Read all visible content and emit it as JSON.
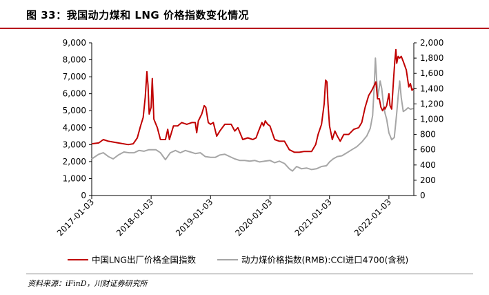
{
  "figure": {
    "title": "图 33：我国动力煤和 LNG 价格指数变化情况",
    "source": "资料来源：iFinD，川财证券研究所"
  },
  "colors": {
    "accent": "#b7121b",
    "lng": "#c00000",
    "coal": "#a6a6a6"
  },
  "chart_data": {
    "type": "line",
    "x_type": "date",
    "x_ticks": [
      "2017-01-03",
      "2018-01-03",
      "2019-01-03",
      "2020-01-03",
      "2021-01-03",
      "2022-01-03"
    ],
    "y_left": {
      "lim": [
        0,
        9000
      ],
      "ticks": [
        0,
        1000,
        2000,
        3000,
        4000,
        5000,
        6000,
        7000,
        8000,
        9000
      ],
      "tick_labels": [
        "0",
        "1,000",
        "2,000",
        "3,000",
        "4,000",
        "5,000",
        "6,000",
        "7,000",
        "8,000",
        "9,000"
      ]
    },
    "y_right": {
      "lim": [
        0,
        2000
      ],
      "ticks": [
        0,
        200,
        400,
        600,
        800,
        1000,
        1200,
        1400,
        1600,
        1800,
        2000
      ],
      "tick_labels": [
        "0",
        "200",
        "400",
        "600",
        "800",
        "1,000",
        "1,200",
        "1,400",
        "1,600",
        "1,800",
        "2,000"
      ]
    },
    "grid": false,
    "legend_position": "bottom",
    "series": [
      {
        "name": "中国LNG出厂价格全国指数",
        "axis": "left",
        "points": [
          [
            "2017-01-03",
            3050
          ],
          [
            "2017-02-15",
            3100
          ],
          [
            "2017-03-15",
            3300
          ],
          [
            "2017-04-15",
            3200
          ],
          [
            "2017-06-15",
            3100
          ],
          [
            "2017-08-15",
            3000
          ],
          [
            "2017-09-15",
            3050
          ],
          [
            "2017-10-10",
            3400
          ],
          [
            "2017-10-30",
            4100
          ],
          [
            "2017-11-15",
            4600
          ],
          [
            "2017-11-28",
            5800
          ],
          [
            "2017-12-08",
            7300
          ],
          [
            "2017-12-15",
            6500
          ],
          [
            "2017-12-22",
            4800
          ],
          [
            "2018-01-03",
            5200
          ],
          [
            "2018-01-10",
            6900
          ],
          [
            "2018-01-20",
            4500
          ],
          [
            "2018-02-10",
            4000
          ],
          [
            "2018-03-01",
            3300
          ],
          [
            "2018-04-01",
            3300
          ],
          [
            "2018-04-15",
            3900
          ],
          [
            "2018-04-25",
            3300
          ],
          [
            "2018-05-20",
            4100
          ],
          [
            "2018-06-15",
            4100
          ],
          [
            "2018-07-10",
            4300
          ],
          [
            "2018-08-10",
            4200
          ],
          [
            "2018-09-10",
            4300
          ],
          [
            "2018-10-01",
            4300
          ],
          [
            "2018-10-10",
            3700
          ],
          [
            "2018-10-20",
            4400
          ],
          [
            "2018-11-10",
            4800
          ],
          [
            "2018-11-25",
            5300
          ],
          [
            "2018-12-05",
            5200
          ],
          [
            "2018-12-20",
            4300
          ],
          [
            "2019-01-03",
            4200
          ],
          [
            "2019-01-20",
            4300
          ],
          [
            "2019-02-10",
            3500
          ],
          [
            "2019-03-01",
            3800
          ],
          [
            "2019-04-01",
            4200
          ],
          [
            "2019-05-10",
            4200
          ],
          [
            "2019-06-01",
            3800
          ],
          [
            "2019-06-20",
            4000
          ],
          [
            "2019-07-20",
            3300
          ],
          [
            "2019-08-20",
            3400
          ],
          [
            "2019-09-20",
            3300
          ],
          [
            "2019-10-10",
            3400
          ],
          [
            "2019-10-25",
            3800
          ],
          [
            "2019-11-15",
            4300
          ],
          [
            "2019-11-25",
            4100
          ],
          [
            "2019-12-05",
            4400
          ],
          [
            "2019-12-20",
            4200
          ],
          [
            "2020-01-03",
            4100
          ],
          [
            "2020-02-01",
            3300
          ],
          [
            "2020-03-01",
            3200
          ],
          [
            "2020-04-01",
            3200
          ],
          [
            "2020-05-01",
            2700
          ],
          [
            "2020-06-01",
            2550
          ],
          [
            "2020-07-01",
            2550
          ],
          [
            "2020-08-01",
            2600
          ],
          [
            "2020-09-15",
            2600
          ],
          [
            "2020-10-10",
            3000
          ],
          [
            "2020-10-25",
            3600
          ],
          [
            "2020-11-15",
            4200
          ],
          [
            "2020-12-01",
            5400
          ],
          [
            "2020-12-10",
            6800
          ],
          [
            "2020-12-18",
            6700
          ],
          [
            "2020-12-25",
            5400
          ],
          [
            "2021-01-03",
            4100
          ],
          [
            "2021-01-20",
            3300
          ],
          [
            "2021-02-05",
            3800
          ],
          [
            "2021-02-20",
            3500
          ],
          [
            "2021-03-10",
            3200
          ],
          [
            "2021-04-01",
            3600
          ],
          [
            "2021-05-01",
            3600
          ],
          [
            "2021-06-01",
            3900
          ],
          [
            "2021-07-01",
            4000
          ],
          [
            "2021-07-20",
            4300
          ],
          [
            "2021-08-10",
            5200
          ],
          [
            "2021-09-01",
            5900
          ],
          [
            "2021-09-20",
            6200
          ],
          [
            "2021-10-05",
            6500
          ],
          [
            "2021-10-15",
            6700
          ],
          [
            "2021-10-25",
            5700
          ],
          [
            "2021-11-05",
            5700
          ],
          [
            "2021-11-15",
            5200
          ],
          [
            "2021-11-25",
            5000
          ],
          [
            "2021-12-05",
            5200
          ],
          [
            "2021-12-10",
            5100
          ],
          [
            "2021-12-20",
            5300
          ],
          [
            "2022-01-03",
            6000
          ],
          [
            "2022-01-10",
            5300
          ],
          [
            "2022-01-20",
            5100
          ],
          [
            "2022-02-01",
            6900
          ],
          [
            "2022-02-08",
            7900
          ],
          [
            "2022-02-15",
            8600
          ],
          [
            "2022-02-20",
            7800
          ],
          [
            "2022-03-01",
            8200
          ],
          [
            "2022-03-10",
            8100
          ],
          [
            "2022-03-20",
            8200
          ],
          [
            "2022-04-01",
            7900
          ],
          [
            "2022-04-20",
            7400
          ],
          [
            "2022-05-05",
            6400
          ],
          [
            "2022-05-15",
            6600
          ],
          [
            "2022-05-25",
            6200
          ],
          [
            "2022-06-02",
            6300
          ]
        ]
      },
      {
        "name": "动力煤价格指数(RMB):CCI进口4700(含税)",
        "axis": "right",
        "points": [
          [
            "2017-01-03",
            480
          ],
          [
            "2017-02-15",
            540
          ],
          [
            "2017-03-15",
            560
          ],
          [
            "2017-04-15",
            510
          ],
          [
            "2017-05-15",
            480
          ],
          [
            "2017-06-15",
            530
          ],
          [
            "2017-07-20",
            570
          ],
          [
            "2017-08-20",
            560
          ],
          [
            "2017-09-20",
            560
          ],
          [
            "2017-10-20",
            590
          ],
          [
            "2017-11-20",
            580
          ],
          [
            "2017-12-20",
            600
          ],
          [
            "2018-01-03",
            600
          ],
          [
            "2018-02-01",
            600
          ],
          [
            "2018-03-01",
            560
          ],
          [
            "2018-04-01",
            470
          ],
          [
            "2018-05-01",
            560
          ],
          [
            "2018-06-01",
            590
          ],
          [
            "2018-07-01",
            560
          ],
          [
            "2018-08-01",
            590
          ],
          [
            "2018-09-01",
            570
          ],
          [
            "2018-10-01",
            550
          ],
          [
            "2018-11-01",
            560
          ],
          [
            "2018-12-01",
            510
          ],
          [
            "2019-01-03",
            500
          ],
          [
            "2019-02-01",
            500
          ],
          [
            "2019-03-01",
            530
          ],
          [
            "2019-04-01",
            540
          ],
          [
            "2019-05-01",
            510
          ],
          [
            "2019-06-01",
            480
          ],
          [
            "2019-07-01",
            460
          ],
          [
            "2019-08-01",
            460
          ],
          [
            "2019-09-01",
            450
          ],
          [
            "2019-10-01",
            460
          ],
          [
            "2019-11-01",
            440
          ],
          [
            "2019-12-01",
            450
          ],
          [
            "2020-01-03",
            460
          ],
          [
            "2020-02-01",
            430
          ],
          [
            "2020-03-01",
            450
          ],
          [
            "2020-04-01",
            420
          ],
          [
            "2020-05-01",
            350
          ],
          [
            "2020-05-20",
            320
          ],
          [
            "2020-06-15",
            380
          ],
          [
            "2020-07-15",
            350
          ],
          [
            "2020-08-15",
            360
          ],
          [
            "2020-09-15",
            340
          ],
          [
            "2020-10-15",
            350
          ],
          [
            "2020-11-15",
            380
          ],
          [
            "2020-12-15",
            390
          ],
          [
            "2021-01-03",
            440
          ],
          [
            "2021-01-25",
            480
          ],
          [
            "2021-02-20",
            510
          ],
          [
            "2021-03-20",
            520
          ],
          [
            "2021-04-20",
            560
          ],
          [
            "2021-05-20",
            600
          ],
          [
            "2021-06-20",
            640
          ],
          [
            "2021-07-20",
            700
          ],
          [
            "2021-08-20",
            780
          ],
          [
            "2021-09-10",
            880
          ],
          [
            "2021-09-25",
            1050
          ],
          [
            "2021-10-05",
            1450
          ],
          [
            "2021-10-12",
            1800
          ],
          [
            "2021-10-20",
            1500
          ],
          [
            "2021-10-28",
            1300
          ],
          [
            "2021-11-10",
            1500
          ],
          [
            "2021-11-20",
            1400
          ],
          [
            "2021-12-01",
            1180
          ],
          [
            "2021-12-10",
            1080
          ],
          [
            "2021-12-20",
            1000
          ],
          [
            "2022-01-03",
            820
          ],
          [
            "2022-01-20",
            730
          ],
          [
            "2022-02-05",
            760
          ],
          [
            "2022-02-20",
            1080
          ],
          [
            "2022-03-01",
            1300
          ],
          [
            "2022-03-10",
            1500
          ],
          [
            "2022-03-20",
            1280
          ],
          [
            "2022-04-01",
            1100
          ],
          [
            "2022-04-15",
            1120
          ],
          [
            "2022-05-01",
            1150
          ],
          [
            "2022-05-15",
            1130
          ],
          [
            "2022-06-02",
            1140
          ]
        ]
      }
    ]
  }
}
